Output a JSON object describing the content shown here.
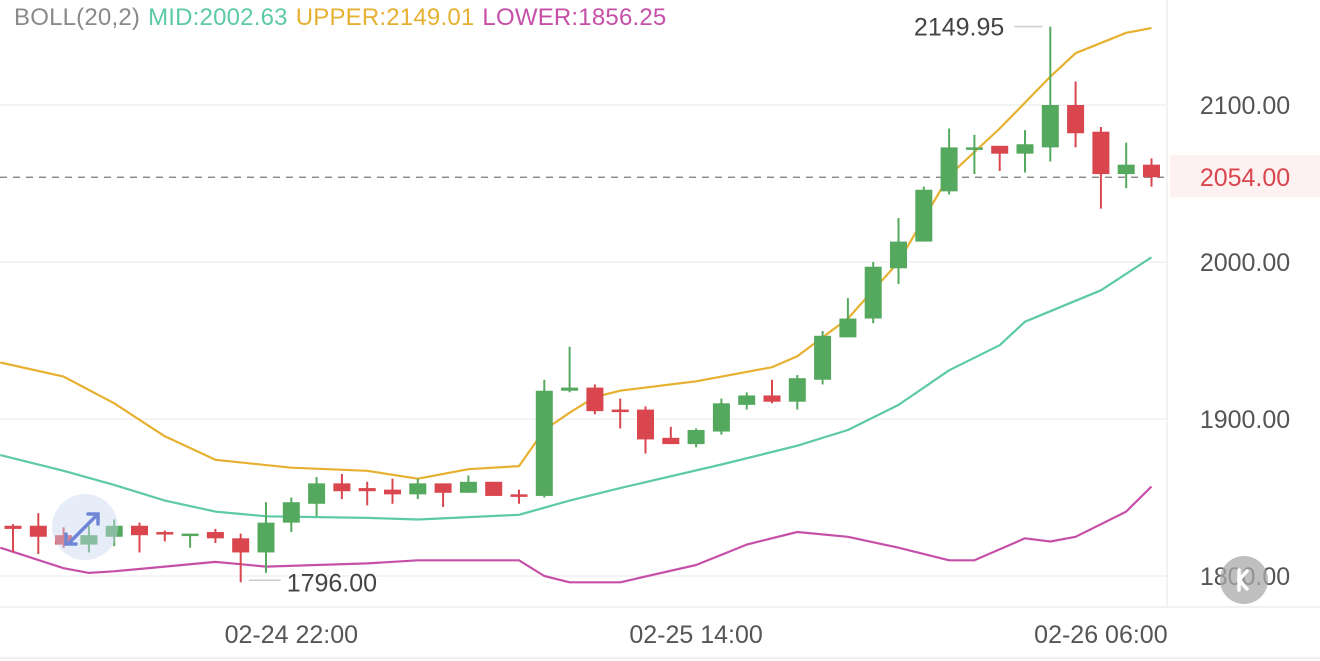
{
  "legend": {
    "name": "BOLL(20,2)",
    "mid": "MID:2002.63",
    "upper": "UPPER:2149.01",
    "lower": "LOWER:1856.25"
  },
  "colors": {
    "up": "#55a95e",
    "down": "#d9464e",
    "mid": "#5cc9a7",
    "upper": "#e6b030",
    "lower": "#c650a8",
    "legend_name": "#8a8a8a",
    "axis_text": "#555555",
    "last_price": "#d9464e"
  },
  "chart_data": {
    "type": "candlestick",
    "interval": "1h",
    "ylim": [
      1780,
      2170
    ],
    "y_ticks": [
      "2100.00",
      "2000.00",
      "1900.00",
      "1800.00"
    ],
    "y_tick_values": [
      2100,
      2000,
      1900,
      1800
    ],
    "x_ticks": [
      {
        "index": 11,
        "label": "02-24 22:00"
      },
      {
        "index": 27,
        "label": "02-25 14:00"
      },
      {
        "index": 43,
        "label": "02-26 06:00"
      }
    ],
    "last_price": {
      "value": 2054,
      "label": "2054.00"
    },
    "max_marker": {
      "index": 41,
      "value": 2149.95,
      "label": "2149.95"
    },
    "min_marker": {
      "index": 9,
      "value": 1796,
      "label": "1796.00"
    },
    "candles": [
      [
        1832,
        1830,
        1833,
        1815
      ],
      [
        1832,
        1825,
        1840,
        1814
      ],
      [
        1826,
        1820,
        1831,
        1818
      ],
      [
        1820,
        1826,
        1832,
        1815
      ],
      [
        1825,
        1832,
        1836,
        1819
      ],
      [
        1832,
        1826,
        1834,
        1815
      ],
      [
        1828,
        1827,
        1829,
        1822
      ],
      [
        1826,
        1827,
        1827,
        1818
      ],
      [
        1828,
        1824,
        1830,
        1821
      ],
      [
        1824,
        1815,
        1827,
        1796
      ],
      [
        1815,
        1834,
        1847,
        1802
      ],
      [
        1834,
        1847,
        1850,
        1828
      ],
      [
        1846,
        1859,
        1863,
        1838
      ],
      [
        1859,
        1854,
        1865,
        1849
      ],
      [
        1856,
        1854,
        1860,
        1845
      ],
      [
        1855,
        1852,
        1862,
        1846
      ],
      [
        1852,
        1859,
        1862,
        1849
      ],
      [
        1859,
        1853,
        1859,
        1844
      ],
      [
        1853,
        1860,
        1864,
        1853
      ],
      [
        1860,
        1851,
        1860,
        1851
      ],
      [
        1852,
        1851,
        1855,
        1846
      ],
      [
        1851,
        1918,
        1925,
        1850
      ],
      [
        1918,
        1920,
        1946,
        1917
      ],
      [
        1920,
        1905,
        1922,
        1903
      ],
      [
        1906,
        1905,
        1913,
        1894
      ],
      [
        1906,
        1887,
        1908,
        1878
      ],
      [
        1888,
        1884,
        1895,
        1884
      ],
      [
        1884,
        1893,
        1894,
        1882
      ],
      [
        1892,
        1910,
        1913,
        1890
      ],
      [
        1909,
        1915,
        1917,
        1906
      ],
      [
        1915,
        1911,
        1925,
        1910
      ],
      [
        1911,
        1926,
        1928,
        1906
      ],
      [
        1925,
        1953,
        1956,
        1922
      ],
      [
        1952,
        1964,
        1977,
        1952
      ],
      [
        1964,
        1997,
        2000,
        1961
      ],
      [
        1996,
        2013,
        2028,
        1986
      ],
      [
        2013,
        2046,
        2048,
        2013
      ],
      [
        2045,
        2073,
        2085,
        2043
      ],
      [
        2073,
        2073,
        2081,
        2056
      ],
      [
        2074,
        2069,
        2074,
        2058
      ],
      [
        2069,
        2075,
        2084,
        2057
      ],
      [
        2073,
        2100,
        2149.95,
        2064
      ],
      [
        2100,
        2082,
        2115,
        2073
      ],
      [
        2083,
        2056,
        2086,
        2034
      ],
      [
        2056,
        2062,
        2076,
        2047
      ],
      [
        2062,
        2054,
        2066,
        2048
      ]
    ],
    "candle_fields": [
      "open",
      "close",
      "high",
      "low"
    ],
    "series": [
      {
        "name": "UPPER",
        "points": [
          [
            -0.5,
            1936
          ],
          [
            2,
            1927
          ],
          [
            4,
            1910
          ],
          [
            6,
            1889
          ],
          [
            8,
            1874
          ],
          [
            11,
            1869
          ],
          [
            14,
            1867
          ],
          [
            16,
            1862
          ],
          [
            18,
            1868
          ],
          [
            20,
            1870
          ],
          [
            21,
            1893
          ],
          [
            22,
            1904
          ],
          [
            23,
            1914
          ],
          [
            24,
            1918
          ],
          [
            27,
            1924
          ],
          [
            30,
            1933
          ],
          [
            31,
            1940
          ],
          [
            33,
            1964
          ],
          [
            35,
            2000
          ],
          [
            37,
            2055
          ],
          [
            39,
            2085
          ],
          [
            41,
            2118
          ],
          [
            42,
            2133
          ],
          [
            44,
            2146
          ],
          [
            45,
            2149
          ]
        ]
      },
      {
        "name": "MID",
        "points": [
          [
            -0.5,
            1877
          ],
          [
            2,
            1867
          ],
          [
            4,
            1858
          ],
          [
            6,
            1848
          ],
          [
            8,
            1841
          ],
          [
            10,
            1838
          ],
          [
            14,
            1837
          ],
          [
            16,
            1836
          ],
          [
            20,
            1839
          ],
          [
            22,
            1848
          ],
          [
            24,
            1856
          ],
          [
            28,
            1871
          ],
          [
            31,
            1883
          ],
          [
            33,
            1893
          ],
          [
            35,
            1909
          ],
          [
            37,
            1931
          ],
          [
            39,
            1947
          ],
          [
            40,
            1962
          ],
          [
            43,
            1982
          ],
          [
            45,
            2003
          ]
        ]
      },
      {
        "name": "LOWER",
        "points": [
          [
            -0.5,
            1818
          ],
          [
            2,
            1805
          ],
          [
            3,
            1802
          ],
          [
            4,
            1803
          ],
          [
            6,
            1806
          ],
          [
            8,
            1809
          ],
          [
            10,
            1806
          ],
          [
            14,
            1808
          ],
          [
            16,
            1810
          ],
          [
            20,
            1810
          ],
          [
            21,
            1800
          ],
          [
            22,
            1796
          ],
          [
            24,
            1796
          ],
          [
            27,
            1807
          ],
          [
            29,
            1820
          ],
          [
            31,
            1828
          ],
          [
            33,
            1825
          ],
          [
            35,
            1818
          ],
          [
            37,
            1810
          ],
          [
            38,
            1810
          ],
          [
            40,
            1824
          ],
          [
            41,
            1822
          ],
          [
            42,
            1825
          ],
          [
            44,
            1841
          ],
          [
            45,
            1857
          ]
        ]
      }
    ]
  }
}
